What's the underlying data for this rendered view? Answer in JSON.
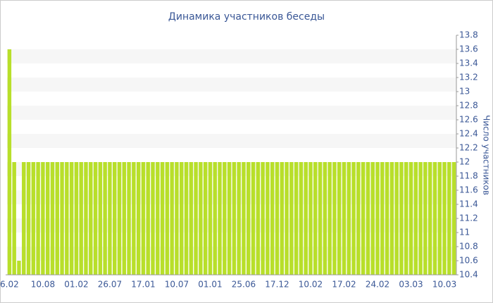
{
  "chart_data": {
    "type": "bar",
    "title": "Динамика участников беседы",
    "y_label": "Число участников",
    "categories": [
      "6.02",
      null,
      null,
      null,
      null,
      null,
      null,
      "10.08",
      null,
      null,
      null,
      null,
      null,
      null,
      "01.02",
      null,
      null,
      null,
      null,
      null,
      null,
      "26.07",
      null,
      null,
      null,
      null,
      null,
      null,
      "17.01",
      null,
      null,
      null,
      null,
      null,
      null,
      "10.07",
      null,
      null,
      null,
      null,
      null,
      null,
      "01.01",
      null,
      null,
      null,
      null,
      null,
      null,
      "25.06",
      null,
      null,
      null,
      null,
      null,
      null,
      "17.12",
      null,
      null,
      null,
      null,
      null,
      null,
      "10.02",
      null,
      null,
      null,
      null,
      null,
      null,
      "17.02",
      null,
      null,
      null,
      null,
      null,
      null,
      "24.02",
      null,
      null,
      null,
      null,
      null,
      null,
      "03.03",
      null,
      null,
      null,
      null,
      null,
      null,
      "10.03",
      null,
      null
    ],
    "values": [
      13.6,
      12,
      10.6,
      12,
      12,
      12,
      12,
      12,
      12,
      12,
      12,
      12,
      12,
      12,
      12,
      12,
      12,
      12,
      12,
      12,
      12,
      12,
      12,
      12,
      12,
      12,
      12,
      12,
      12,
      12,
      12,
      12,
      12,
      12,
      12,
      12,
      12,
      12,
      12,
      12,
      12,
      12,
      12,
      12,
      12,
      12,
      12,
      12,
      12,
      12,
      12,
      12,
      12,
      12,
      12,
      12,
      12,
      12,
      12,
      12,
      12,
      12,
      12,
      12,
      12,
      12,
      12,
      12,
      12,
      12,
      12,
      12,
      12,
      12,
      12,
      12,
      12,
      12,
      12,
      12,
      12,
      12,
      12,
      12,
      12,
      12,
      12,
      12,
      12,
      12,
      12,
      12,
      12,
      12
    ],
    "color": "#b8df2a",
    "ylim": [
      10.4,
      13.8
    ],
    "yticks": [
      10.4,
      10.6,
      10.8,
      11,
      11.2,
      11.4,
      11.6,
      11.8,
      12,
      12.2,
      12.4,
      12.6,
      12.8,
      13,
      13.2,
      13.4,
      13.6,
      13.8
    ],
    "grid": true
  }
}
